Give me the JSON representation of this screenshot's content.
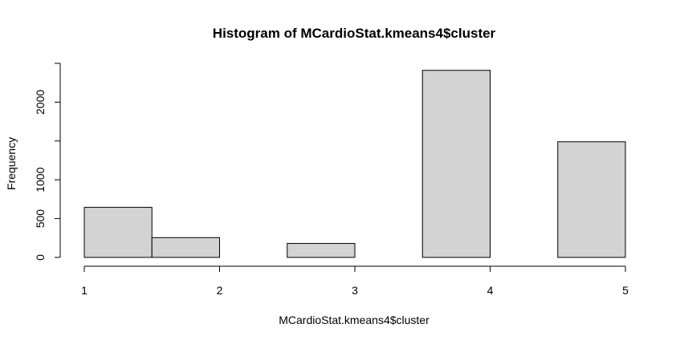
{
  "chart_data": {
    "type": "histogram",
    "title": "Histogram of MCardioStat.kmeans4$cluster",
    "xlabel": "MCardioStat.kmeans4$cluster",
    "ylabel": "Frequency",
    "bins": [
      {
        "start": 1.0,
        "end": 1.5,
        "count": 645
      },
      {
        "start": 1.5,
        "end": 2.0,
        "count": 255
      },
      {
        "start": 2.0,
        "end": 2.5,
        "count": 0
      },
      {
        "start": 2.5,
        "end": 3.0,
        "count": 180
      },
      {
        "start": 3.0,
        "end": 3.5,
        "count": 0
      },
      {
        "start": 3.5,
        "end": 4.0,
        "count": 2410
      },
      {
        "start": 4.0,
        "end": 4.5,
        "count": 0
      },
      {
        "start": 4.5,
        "end": 5.0,
        "count": 1490
      }
    ],
    "xticks": [
      1,
      2,
      3,
      4,
      5
    ],
    "yticks": [
      0,
      500,
      1000,
      1500,
      2000,
      2500
    ],
    "ytick_labels": [
      "0",
      "500",
      "1000",
      "",
      "2000",
      ""
    ],
    "xlim": [
      1,
      5
    ],
    "ylim": [
      0,
      2500
    ],
    "colors": {
      "bar_fill": "#d3d3d3",
      "bar_stroke": "#000000"
    },
    "grid": false
  }
}
